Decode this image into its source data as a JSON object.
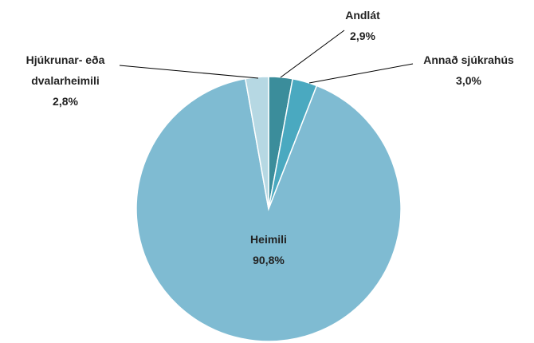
{
  "chart_data": {
    "type": "pie",
    "categories": [
      "Andlát",
      "Annað sjúkrahús",
      "Heimili",
      "Hjúkrunar- eða dvalarheimili"
    ],
    "values": [
      2.9,
      3.0,
      90.8,
      2.8
    ],
    "value_labels": [
      "2,9%",
      "3,0%",
      "90,8%",
      "2,8%"
    ],
    "colors": [
      "#3b8d9b",
      "#4aa9c0",
      "#7fbbd2",
      "#b6d8e3"
    ]
  }
}
